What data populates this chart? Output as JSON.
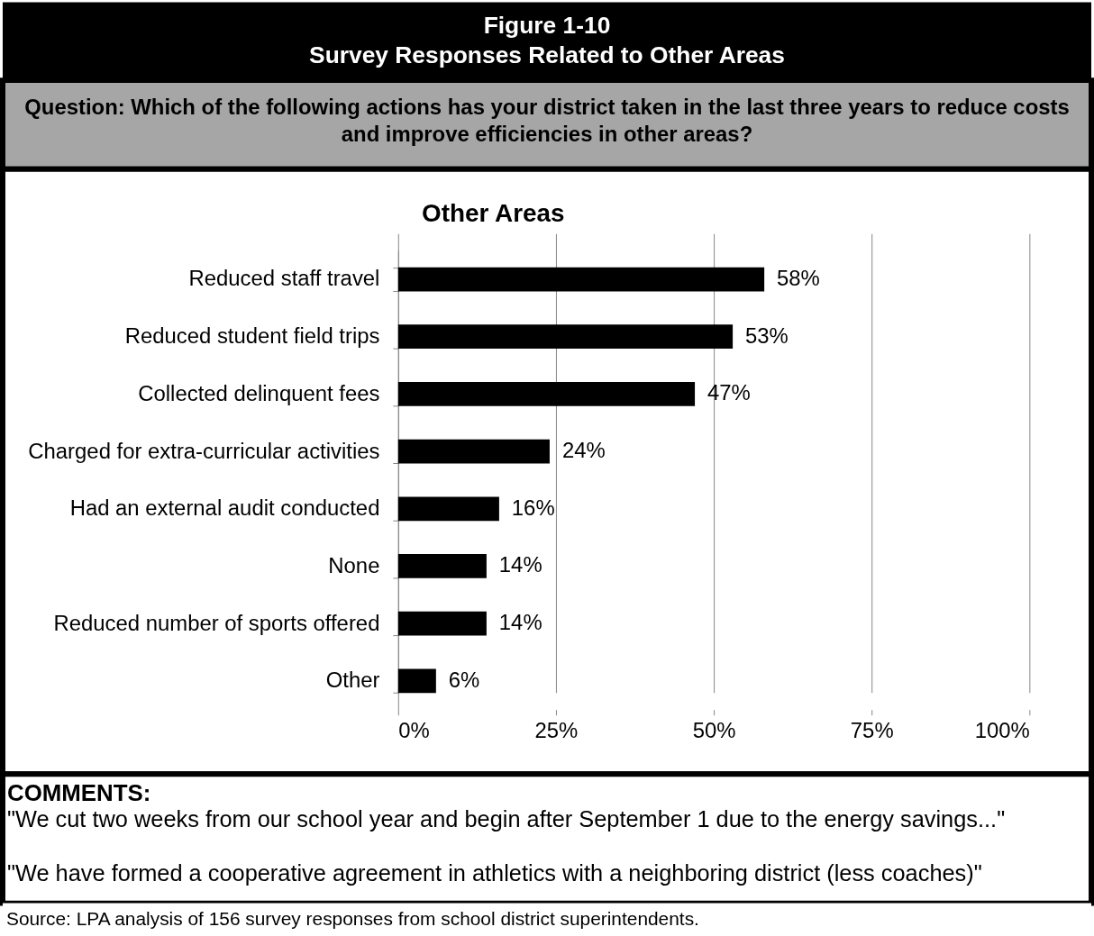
{
  "chart_data": {
    "type": "bar",
    "orientation": "horizontal",
    "title": "Survey Responses Related to Other Areas",
    "subtitle": "Question: Which of the following actions has your district taken in the last three years to reduce costs and improve efficiencies in other areas?",
    "categories": [
      "Reduced staff travel",
      "Reduced student field trips",
      "Collected delinquent fees",
      "Charged for extra-curricular activities",
      "Had an external audit conducted",
      "None",
      "Reduced number of sports offered",
      "Other"
    ],
    "values": [
      58,
      53,
      47,
      24,
      16,
      14,
      14,
      6
    ],
    "value_labels": [
      "58%",
      "53%",
      "47%",
      "24%",
      "16%",
      "14%",
      "14%",
      "6%"
    ],
    "color": "#000000",
    "xlim": [
      0,
      100
    ],
    "xticks": [
      {
        "value": 0,
        "label": "0%"
      },
      {
        "value": 25,
        "label": "25%"
      },
      {
        "value": 50,
        "label": "50%"
      },
      {
        "value": 75,
        "label": "75%"
      },
      {
        "value": 100,
        "label": "100%"
      }
    ],
    "grid": "x",
    "annotations": [
      "Figure 1-10",
      "Other Areas",
      "COMMENTS:",
      "\"We cut two weeks from our school year and begin after September 1 due to the energy savings...\"",
      "\"We have formed a cooperative agreement in athletics with a neighboring district (less coaches)\"",
      "Source: LPA analysis of 156 survey responses from school district superintendents."
    ]
  }
}
